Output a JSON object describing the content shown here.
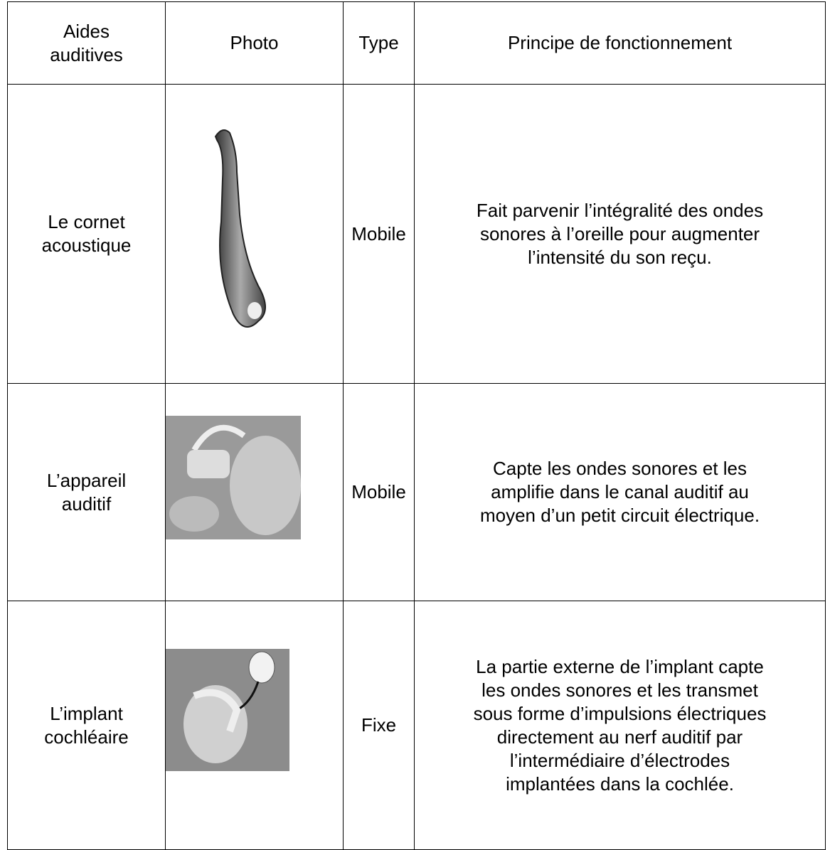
{
  "table": {
    "header": [
      "Aides\nauditives",
      "Photo",
      "Type",
      "Principe de fonctionnement"
    ],
    "rows": [
      {
        "aid": "Le cornet\nacoustique",
        "type": "Mobile",
        "principle": "Fait parvenir l’intégralité des ondes\nsonores à l’oreille pour augmenter\nl’intensité du son reçu."
      },
      {
        "aid": "L’appareil\nauditif",
        "type": "Mobile",
        "principle": "Capte les ondes sonores et les\namplifie dans le canal auditif au\nmoyen d’un petit circuit électrique."
      },
      {
        "aid": "L’implant\ncochléaire",
        "type": "Fixe",
        "principle": "La partie externe de l’implant capte\nles ondes sonores et les transmet\nsous forme d’impulsions électriques\ndirectement au nerf auditif par\nl’intermédiaire d’électrodes\nimplantées dans la cochlée."
      }
    ]
  }
}
